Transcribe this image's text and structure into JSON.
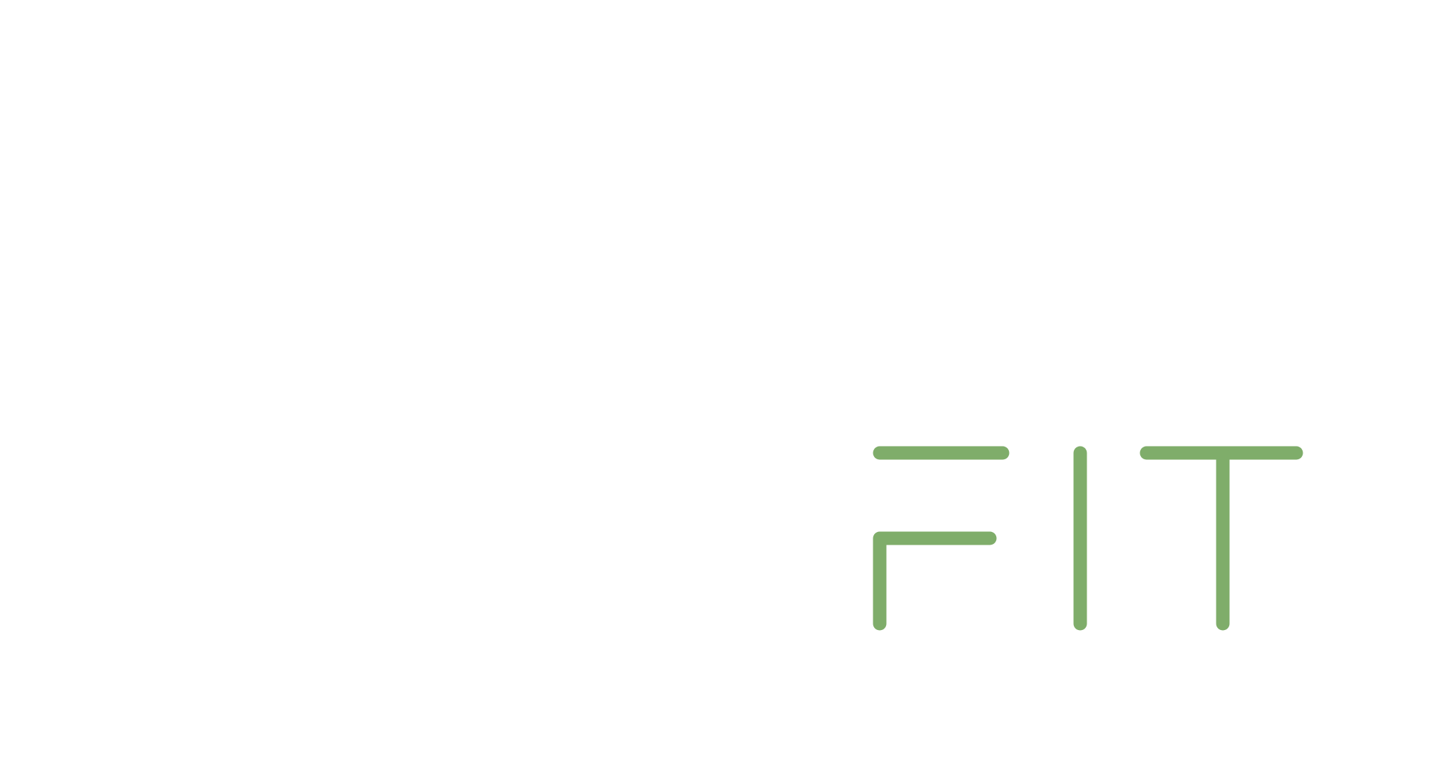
{
  "logo": {
    "text": "FIT",
    "color": "#7FAD6A",
    "background": "#FFFFFF",
    "icon": "fit-wordmark-logo"
  }
}
